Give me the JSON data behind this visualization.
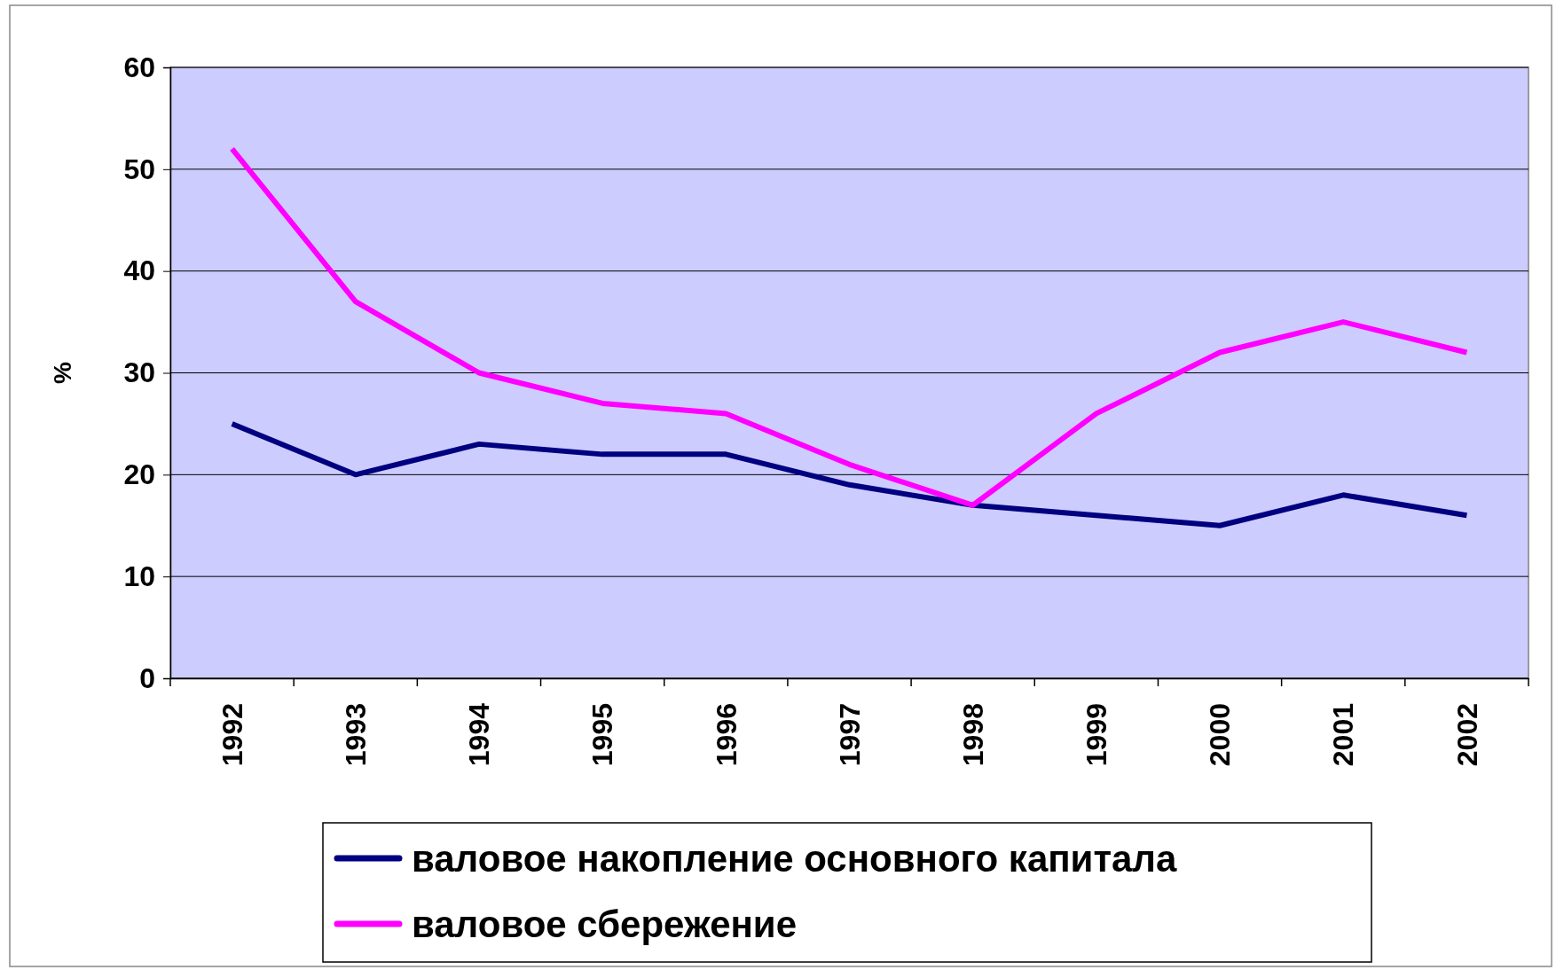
{
  "chart_data": {
    "type": "line",
    "ylabel": "%",
    "categories": [
      "1992",
      "1993",
      "1994",
      "1995",
      "1996",
      "1997",
      "1998",
      "1999",
      "2000",
      "2001",
      "2002"
    ],
    "series": [
      {
        "name": "валовое накопление основного капитала",
        "color": "#000080",
        "values": [
          25,
          20,
          23,
          22,
          22,
          19,
          17,
          16,
          15,
          18,
          16
        ]
      },
      {
        "name": "валовое сбережение",
        "color": "#ff00ff",
        "values": [
          52,
          37,
          30,
          27,
          26,
          21,
          17,
          26,
          32,
          35,
          32
        ]
      }
    ],
    "ylim": [
      0,
      60
    ],
    "yticks": [
      0,
      10,
      20,
      30,
      40,
      50,
      60
    ],
    "grid": "y",
    "legend": "bottom",
    "line_style": "solid",
    "marker": "none"
  }
}
